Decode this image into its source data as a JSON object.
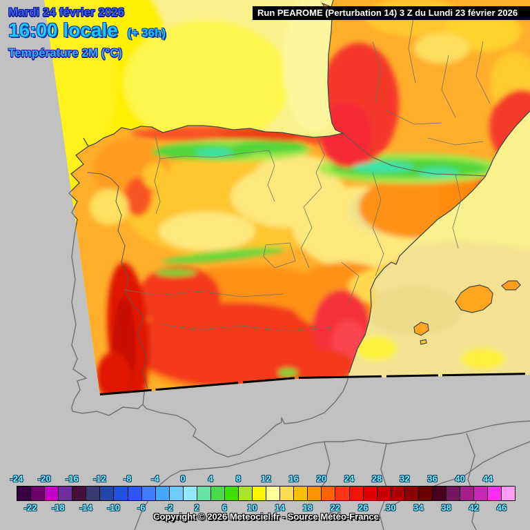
{
  "header": {
    "date": "Mardi 24 février 2026",
    "time": "16:00 locale",
    "offset": "(+ 36h)",
    "parameter": "Température 2M (°C)"
  },
  "run_box": {
    "text": "Run PEAROME (Perturbation 14) 3 Z du Lundi 23 février 2026"
  },
  "footer": {
    "copyright": "Copyright © 2026 Meteociel.fr - Source Météo-France"
  },
  "colorbar": {
    "unit": "°C",
    "label_color": "#79F0FF",
    "top_labels": [
      -24,
      -20,
      -16,
      -12,
      -8,
      -4,
      0,
      4,
      8,
      12,
      16,
      20,
      24,
      28,
      32,
      36,
      40,
      44
    ],
    "bottom_labels": [
      -22,
      -18,
      -14,
      -10,
      -6,
      -2,
      2,
      6,
      10,
      14,
      18,
      22,
      26,
      30,
      34,
      38,
      42,
      46
    ],
    "cells": [
      {
        "value": -24,
        "color": "#380042"
      },
      {
        "value": -22,
        "color": "#6E006E"
      },
      {
        "value": -20,
        "color": "#C400C4"
      },
      {
        "value": -18,
        "color": "#6F2DA0"
      },
      {
        "value": -16,
        "color": "#46103A"
      },
      {
        "value": -14,
        "color": "#3A3A72"
      },
      {
        "value": -12,
        "color": "#2147A8"
      },
      {
        "value": -10,
        "color": "#1C52DE"
      },
      {
        "value": -8,
        "color": "#2B57FB"
      },
      {
        "value": -6,
        "color": "#3F7DFF"
      },
      {
        "value": -4,
        "color": "#47A7FF"
      },
      {
        "value": -2,
        "color": "#6CCBFF"
      },
      {
        "value": 0,
        "color": "#8FE9FF"
      },
      {
        "value": 2,
        "color": "#67E2A5"
      },
      {
        "value": 4,
        "color": "#4BD94B"
      },
      {
        "value": 6,
        "color": "#3EDF00"
      },
      {
        "value": 8,
        "color": "#A9E42D"
      },
      {
        "value": 10,
        "color": "#FFF500"
      },
      {
        "value": 12,
        "color": "#FFFF9E"
      },
      {
        "value": 14,
        "color": "#FBDB55"
      },
      {
        "value": 16,
        "color": "#FFBE00"
      },
      {
        "value": 18,
        "color": "#FF9300"
      },
      {
        "value": 20,
        "color": "#FF6400"
      },
      {
        "value": 22,
        "color": "#FF3517"
      },
      {
        "value": 24,
        "color": "#F21505"
      },
      {
        "value": 26,
        "color": "#DF0000"
      },
      {
        "value": 28,
        "color": "#C60000"
      },
      {
        "value": 30,
        "color": "#AA0000"
      },
      {
        "value": 32,
        "color": "#8C0000"
      },
      {
        "value": 34,
        "color": "#6B0000"
      },
      {
        "value": 36,
        "color": "#49001C"
      },
      {
        "value": 38,
        "color": "#75175E"
      },
      {
        "value": 40,
        "color": "#A21F8C"
      },
      {
        "value": 42,
        "color": "#C928B6"
      },
      {
        "value": 44,
        "color": "#F92FF0"
      },
      {
        "value": 46,
        "color": "#FC9CF2"
      }
    ]
  },
  "map": {
    "outside_domain_gray": "#C1C1C1",
    "coastline_gray": "#6F6F6F",
    "coastline_dark": "#45483E",
    "domain_edge_black": "#000000",
    "sea_pale_yellow": "#F9F18C",
    "sea_bright_yellow": "#FFEF00",
    "sea_mediterranean_khaki": "#F2E292",
    "land_base_orange": "#FFAE2B",
    "hot_red": "#E01400",
    "mountain_green": "#4FD63B",
    "mountain_teal": "#3EE2A8"
  }
}
